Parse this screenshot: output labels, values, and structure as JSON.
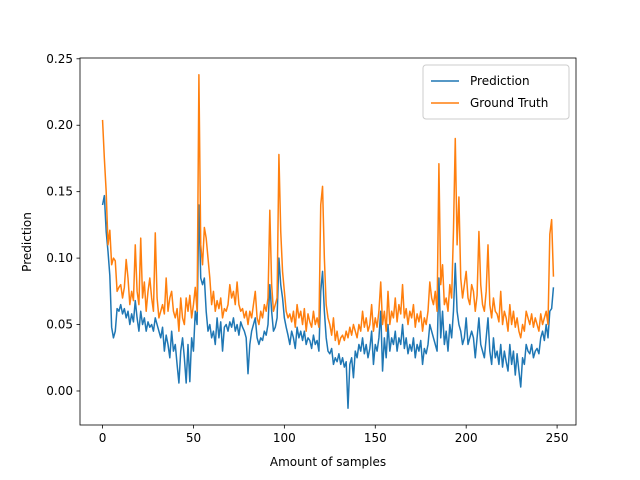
{
  "chart_data": {
    "type": "line",
    "xlabel": "Amount of samples",
    "ylabel": "Prediction",
    "x": [
      0,
      1,
      2,
      3,
      4,
      5,
      6,
      7,
      8,
      9,
      10,
      11,
      12,
      13,
      14,
      15,
      16,
      17,
      18,
      19,
      20,
      21,
      22,
      23,
      24,
      25,
      26,
      27,
      28,
      29,
      30,
      31,
      32,
      33,
      34,
      35,
      36,
      37,
      38,
      39,
      40,
      41,
      42,
      43,
      44,
      45,
      46,
      47,
      48,
      49,
      50,
      51,
      52,
      53,
      54,
      55,
      56,
      57,
      58,
      59,
      60,
      61,
      62,
      63,
      64,
      65,
      66,
      67,
      68,
      69,
      70,
      71,
      72,
      73,
      74,
      75,
      76,
      77,
      78,
      79,
      80,
      81,
      82,
      83,
      84,
      85,
      86,
      87,
      88,
      89,
      90,
      91,
      92,
      93,
      94,
      95,
      96,
      97,
      98,
      99,
      100,
      101,
      102,
      103,
      104,
      105,
      106,
      107,
      108,
      109,
      110,
      111,
      112,
      113,
      114,
      115,
      116,
      117,
      118,
      119,
      120,
      121,
      122,
      123,
      124,
      125,
      126,
      127,
      128,
      129,
      130,
      131,
      132,
      133,
      134,
      135,
      136,
      137,
      138,
      139,
      140,
      141,
      142,
      143,
      144,
      145,
      146,
      147,
      148,
      149,
      150,
      151,
      152,
      153,
      154,
      155,
      156,
      157,
      158,
      159,
      160,
      161,
      162,
      163,
      164,
      165,
      166,
      167,
      168,
      169,
      170,
      171,
      172,
      173,
      174,
      175,
      176,
      177,
      178,
      179,
      180,
      181,
      182,
      183,
      184,
      185,
      186,
      187,
      188,
      189,
      190,
      191,
      192,
      193,
      194,
      195,
      196,
      197,
      198,
      199,
      200,
      201,
      202,
      203,
      204,
      205,
      206,
      207,
      208,
      209,
      210,
      211,
      212,
      213,
      214,
      215,
      216,
      217,
      218,
      219,
      220,
      221,
      222,
      223,
      224,
      225,
      226,
      227,
      228,
      229,
      230,
      231,
      232,
      233,
      234,
      235,
      236,
      237,
      238,
      239,
      240,
      241,
      242,
      243,
      244,
      245,
      246,
      247,
      248
    ],
    "series": [
      {
        "name": "Prediction",
        "color": "#1f77b4",
        "values": [
          0.14,
          0.147,
          0.12,
          0.105,
          0.087,
          0.048,
          0.04,
          0.045,
          0.062,
          0.06,
          0.065,
          0.058,
          0.062,
          0.055,
          0.06,
          0.05,
          0.058,
          0.052,
          0.068,
          0.055,
          0.045,
          0.06,
          0.05,
          0.055,
          0.045,
          0.052,
          0.048,
          0.05,
          0.045,
          0.055,
          0.05,
          0.045,
          0.04,
          0.048,
          0.03,
          0.042,
          0.035,
          0.025,
          0.045,
          0.03,
          0.035,
          0.02,
          0.006,
          0.03,
          0.04,
          0.025,
          0.006,
          0.035,
          0.007,
          0.04,
          0.03,
          0.06,
          0.05,
          0.14,
          0.085,
          0.08,
          0.085,
          0.06,
          0.045,
          0.05,
          0.04,
          0.045,
          0.035,
          0.055,
          0.04,
          0.052,
          0.03,
          0.048,
          0.05,
          0.045,
          0.052,
          0.048,
          0.055,
          0.045,
          0.05,
          0.042,
          0.052,
          0.048,
          0.045,
          0.04,
          0.013,
          0.035,
          0.045,
          0.05,
          0.055,
          0.04,
          0.035,
          0.04,
          0.038,
          0.045,
          0.042,
          0.05,
          0.08,
          0.06,
          0.045,
          0.048,
          0.055,
          0.1,
          0.08,
          0.07,
          0.055,
          0.048,
          0.042,
          0.035,
          0.045,
          0.04,
          0.032,
          0.048,
          0.04,
          0.045,
          0.038,
          0.045,
          0.035,
          0.04,
          0.038,
          0.032,
          0.042,
          0.035,
          0.038,
          0.03,
          0.075,
          0.09,
          0.06,
          0.04,
          0.03,
          0.028,
          0.032,
          0.02,
          0.025,
          0.022,
          0.028,
          0.02,
          0.025,
          0.018,
          0.022,
          -0.013,
          0.02,
          0.025,
          0.01,
          0.03,
          0.025,
          0.035,
          0.03,
          0.04,
          0.028,
          0.035,
          0.025,
          0.032,
          0.045,
          0.02,
          0.035,
          0.03,
          0.04,
          0.06,
          0.015,
          0.04,
          0.025,
          0.05,
          0.03,
          0.04,
          0.035,
          0.045,
          0.03,
          0.04,
          0.035,
          0.05,
          0.032,
          0.04,
          0.028,
          0.035,
          0.03,
          0.04,
          0.025,
          0.035,
          0.03,
          0.038,
          0.02,
          0.032,
          0.028,
          0.035,
          0.05,
          0.045,
          0.04,
          0.035,
          0.03,
          0.085,
          0.04,
          0.06,
          0.035,
          0.045,
          0.03,
          0.05,
          0.04,
          0.06,
          0.096,
          0.06,
          0.05,
          0.045,
          0.035,
          0.04,
          0.055,
          0.035,
          0.04,
          0.045,
          0.04,
          0.025,
          0.04,
          0.055,
          0.035,
          0.03,
          0.025,
          0.04,
          0.055,
          0.03,
          0.02,
          0.04,
          0.025,
          0.03,
          0.02,
          0.035,
          0.018,
          0.03,
          0.022,
          0.015,
          0.035,
          0.02,
          0.03,
          0.012,
          0.028,
          0.015,
          0.003,
          0.025,
          0.02,
          0.035,
          0.03,
          0.028,
          0.035,
          0.025,
          0.03,
          0.032,
          0.028,
          0.04,
          0.045,
          0.038,
          0.05,
          0.04,
          0.06,
          0.062,
          0.078
        ]
      },
      {
        "name": "Ground Truth",
        "color": "#ff7f0e",
        "values": [
          0.204,
          0.175,
          0.15,
          0.11,
          0.121,
          0.095,
          0.1,
          0.098,
          0.075,
          0.078,
          0.08,
          0.07,
          0.078,
          0.099,
          0.085,
          0.065,
          0.075,
          0.068,
          0.11,
          0.075,
          0.065,
          0.115,
          0.07,
          0.082,
          0.06,
          0.075,
          0.085,
          0.07,
          0.06,
          0.119,
          0.07,
          0.055,
          0.06,
          0.065,
          0.058,
          0.085,
          0.06,
          0.07,
          0.075,
          0.06,
          0.055,
          0.062,
          0.045,
          0.07,
          0.055,
          0.05,
          0.07,
          0.06,
          0.072,
          0.055,
          0.065,
          0.078,
          0.06,
          0.238,
          0.11,
          0.095,
          0.123,
          0.115,
          0.1,
          0.085,
          0.065,
          0.075,
          0.06,
          0.068,
          0.062,
          0.07,
          0.055,
          0.062,
          0.06,
          0.065,
          0.08,
          0.07,
          0.075,
          0.065,
          0.082,
          0.065,
          0.06,
          0.062,
          0.055,
          0.06,
          0.05,
          0.06,
          0.055,
          0.065,
          0.075,
          0.055,
          0.05,
          0.06,
          0.055,
          0.065,
          0.06,
          0.07,
          0.136,
          0.08,
          0.06,
          0.065,
          0.07,
          0.178,
          0.12,
          0.09,
          0.075,
          0.06,
          0.055,
          0.058,
          0.052,
          0.06,
          0.048,
          0.065,
          0.055,
          0.06,
          0.05,
          0.062,
          0.045,
          0.058,
          0.052,
          0.048,
          0.06,
          0.05,
          0.055,
          0.048,
          0.14,
          0.154,
          0.1,
          0.065,
          0.055,
          0.05,
          0.042,
          0.055,
          0.038,
          0.045,
          0.035,
          0.04,
          0.042,
          0.038,
          0.045,
          0.04,
          0.048,
          0.042,
          0.05,
          0.045,
          0.04,
          0.05,
          0.045,
          0.06,
          0.048,
          0.055,
          0.045,
          0.05,
          0.065,
          0.045,
          0.055,
          0.048,
          0.06,
          0.082,
          0.05,
          0.06,
          0.045,
          0.075,
          0.05,
          0.06,
          0.055,
          0.07,
          0.052,
          0.065,
          0.058,
          0.08,
          0.055,
          0.062,
          0.05,
          0.06,
          0.055,
          0.065,
          0.048,
          0.058,
          0.052,
          0.06,
          0.045,
          0.055,
          0.05,
          0.06,
          0.082,
          0.07,
          0.065,
          0.075,
          0.06,
          0.171,
          0.08,
          0.095,
          0.065,
          0.07,
          0.06,
          0.08,
          0.07,
          0.12,
          0.19,
          0.11,
          0.146,
          0.085,
          0.07,
          0.08,
          0.09,
          0.07,
          0.065,
          0.08,
          0.075,
          0.06,
          0.072,
          0.12,
          0.08,
          0.065,
          0.06,
          0.075,
          0.11,
          0.065,
          0.055,
          0.07,
          0.06,
          0.058,
          0.052,
          0.075,
          0.05,
          0.06,
          0.055,
          0.045,
          0.065,
          0.05,
          0.06,
          0.048,
          0.055,
          0.045,
          0.04,
          0.05,
          0.045,
          0.06,
          0.055,
          0.05,
          0.058,
          0.048,
          0.055,
          0.05,
          0.045,
          0.058,
          0.05,
          0.055,
          0.06,
          0.05,
          0.118,
          0.129,
          0.086
        ]
      }
    ],
    "xlim": [
      -12.4,
      260.4
    ],
    "xticks": [
      0,
      50,
      100,
      150,
      200,
      250
    ],
    "ylim": [
      -0.0256,
      0.2506
    ],
    "yticks": [
      {
        "value": 0,
        "label": "0.00"
      },
      {
        "value": 0.05,
        "label": "0.05"
      },
      {
        "value": 0.1,
        "label": "0.10"
      },
      {
        "value": 0.15,
        "label": "0.15"
      },
      {
        "value": 0.2,
        "label": "0.20"
      },
      {
        "value": 0.25,
        "label": "0.25"
      }
    ],
    "legend": "upper right"
  }
}
